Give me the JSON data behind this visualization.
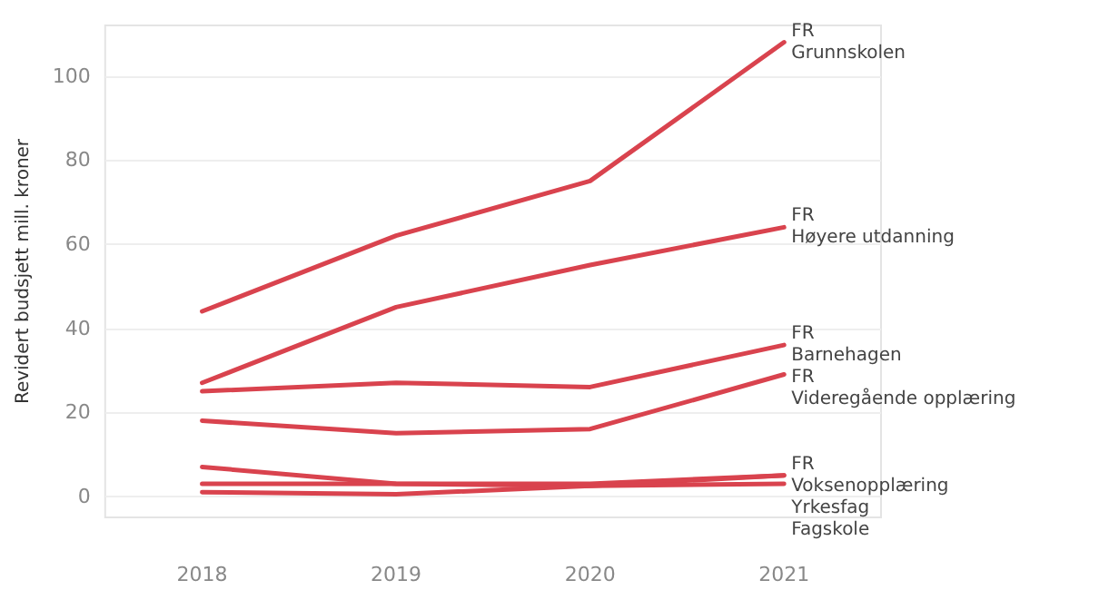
{
  "chart_data": {
    "type": "line",
    "ylabel": "Revidert budsjett mill. kroner",
    "categories": [
      "2018",
      "2019",
      "2020",
      "2021"
    ],
    "series": [
      {
        "name": "FR\nGrunnskolen",
        "color": "#d9434e",
        "values": [
          44,
          62,
          75,
          108
        ]
      },
      {
        "name": "FR\nHøyere utdanning",
        "color": "#d9434e",
        "values": [
          27,
          45,
          55,
          64
        ]
      },
      {
        "name": "FR\nBarnehagen",
        "color": "#d9434e",
        "values": [
          25,
          27,
          26,
          36
        ]
      },
      {
        "name": "FR\nVideregående opplæring",
        "color": "#d9434e",
        "values": [
          18,
          15,
          16,
          29
        ]
      },
      {
        "name": "FR\nVoksenopplæring",
        "color": "#d9434e",
        "values": [
          7,
          3,
          2.5,
          5
        ]
      },
      {
        "name": "Yrkesfag",
        "color": "#d9434e",
        "values": [
          3,
          3,
          3,
          5
        ]
      },
      {
        "name": "Fagskole",
        "color": "#d9434e",
        "values": [
          1,
          0.5,
          2.5,
          3
        ]
      }
    ],
    "ylim": [
      -5,
      112
    ],
    "yticks": [
      0,
      20,
      40,
      60,
      80,
      100
    ],
    "grid": "y",
    "legend": false,
    "marker": "none",
    "line_style": "solid"
  }
}
